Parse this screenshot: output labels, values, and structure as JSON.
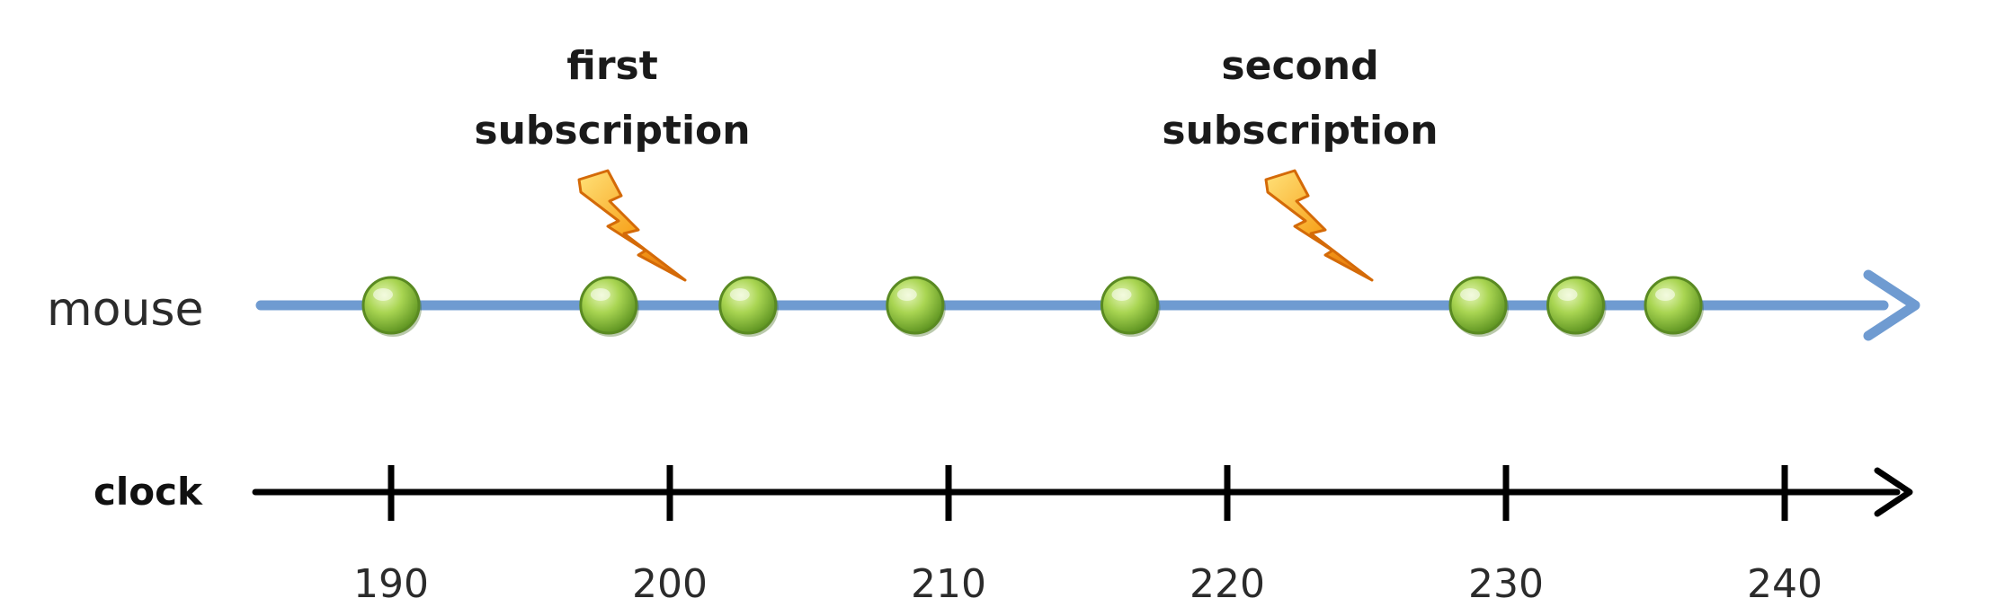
{
  "diagram": {
    "mouse_label": "mouse",
    "clock_label": "clock",
    "mouse_color": "#6f9bd1",
    "clock_color": "#000000",
    "event_color": "#8cc63f",
    "event_icon": "green-circle",
    "subscription_icon": "lightning-bolt-icon",
    "subscriptions": [
      {
        "lines": [
          "first",
          "subscription"
        ],
        "time": 200
      },
      {
        "lines": [
          "second",
          "subscription"
        ],
        "time": 225
      }
    ],
    "mouse_events": [
      190,
      197.8,
      202.8,
      208.8,
      216.5,
      229,
      232.5,
      236
    ],
    "clock_ticks": [
      190,
      200,
      210,
      220,
      230,
      240
    ],
    "clock_tick_labels": [
      "190",
      "200",
      "210",
      "220",
      "230",
      "240"
    ]
  }
}
